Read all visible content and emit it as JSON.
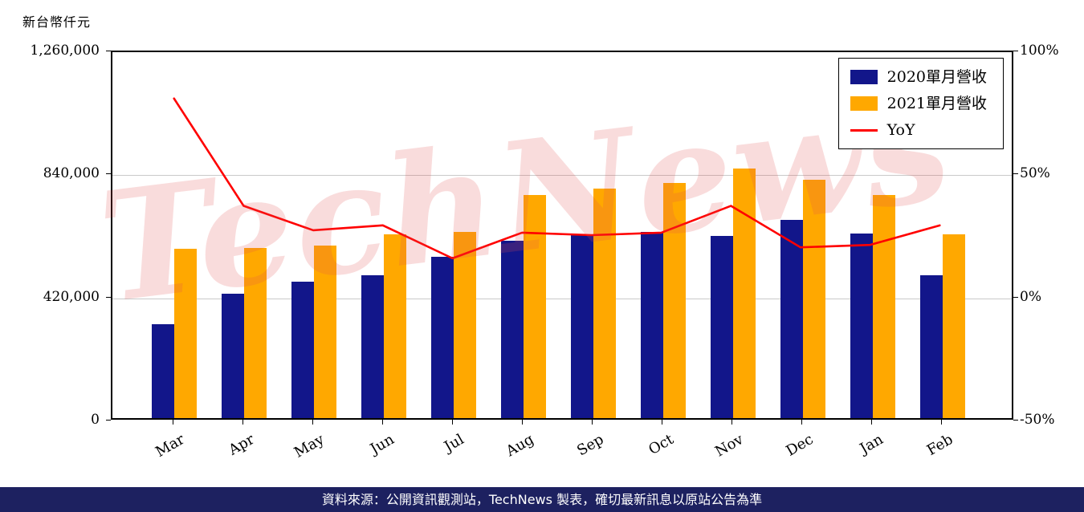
{
  "chart_data": {
    "type": "bar",
    "combo": "bar+line",
    "left_axis_title": "新台幣仟元",
    "categories": [
      "Mar",
      "Apr",
      "May",
      "Jun",
      "Jul",
      "Aug",
      "Sep",
      "Oct",
      "Nov",
      "Dec",
      "Jan",
      "Feb"
    ],
    "series": [
      {
        "name": "2020單月營收",
        "type": "bar",
        "axis": "left",
        "color": "#12168a",
        "values": [
          320000,
          424000,
          465000,
          488000,
          550000,
          606000,
          625000,
          636000,
          622000,
          677000,
          630000,
          488000
        ]
      },
      {
        "name": "2021單月營收",
        "type": "bar",
        "axis": "left",
        "color": "#ffa800",
        "values": [
          579000,
          581000,
          590000,
          628000,
          635000,
          762000,
          784000,
          803000,
          852000,
          814000,
          762000,
          628000
        ]
      },
      {
        "name": "YoY",
        "type": "line",
        "axis": "right",
        "unit": "%",
        "color": "#ff0000",
        "values": [
          81,
          37,
          27,
          29,
          15.5,
          26,
          25,
          26,
          37,
          20,
          21,
          29
        ]
      }
    ],
    "left_axis": {
      "min": 0,
      "max": 1260000,
      "tick_values": [
        1260000,
        840000,
        420000,
        0
      ],
      "tick_labels": [
        "1,260,000",
        "840,000",
        "420,000",
        "0"
      ]
    },
    "right_axis": {
      "min": -50,
      "max": 100,
      "tick_values": [
        100,
        50,
        0,
        -50
      ],
      "tick_labels": [
        "100%",
        "50%",
        "0%",
        "-50%"
      ]
    },
    "grid_values": [
      840000,
      420000
    ],
    "grid": "horizontal",
    "legend_position": "top-right",
    "watermark": "TechNews"
  },
  "footer": {
    "text": "資料來源：公開資訊觀測站，TechNews 製表，確切最新訊息以原站公告為準"
  },
  "colors": {
    "bar_2020": "#12168a",
    "bar_2021": "#ffa800",
    "yoy_line": "#ff0000",
    "grid": "#c9c9c9",
    "axis": "#000000",
    "watermark": "rgba(224,80,80,0.20)",
    "footer_bg": "#1d2160",
    "footer_text": "#ffffff"
  }
}
